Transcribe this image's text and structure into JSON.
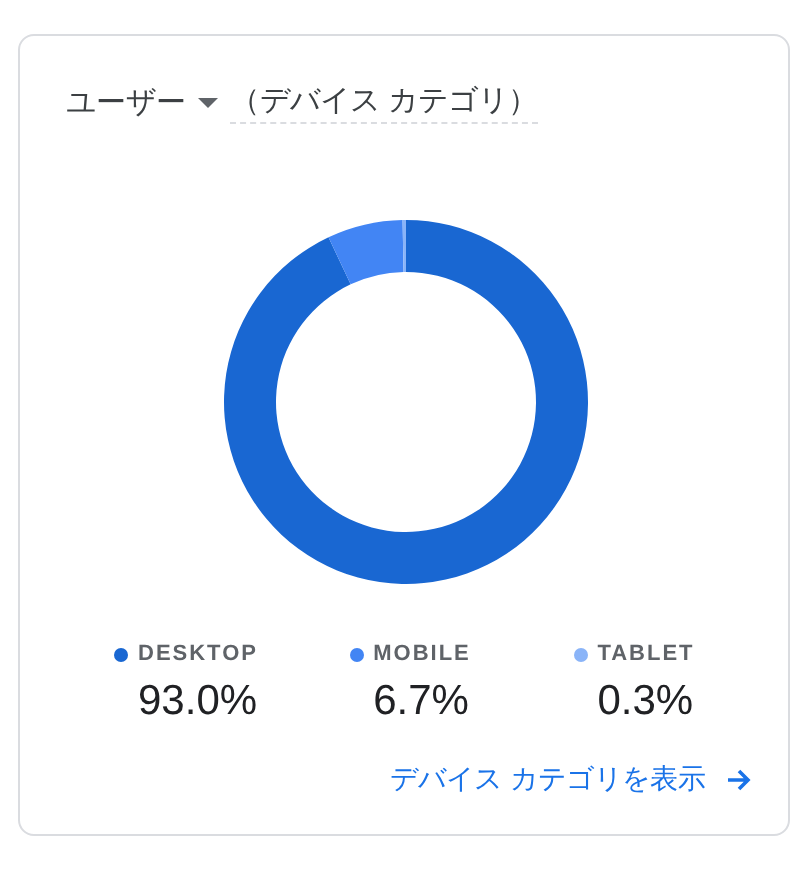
{
  "chart_data": {
    "type": "donut",
    "title": "ユーザー",
    "subtitle": "（デバイス カテゴリ）",
    "categories": [
      "DESKTOP",
      "MOBILE",
      "TABLET"
    ],
    "values": [
      93.0,
      6.7,
      0.3
    ],
    "colors": [
      "#1967d2",
      "#4285f4",
      "#8ab4f8"
    ],
    "value_labels": [
      "93.0%",
      "6.7%",
      "0.3%"
    ],
    "legend": "bottom",
    "annotations": [
      "デバイス カテゴリを表示"
    ]
  }
}
